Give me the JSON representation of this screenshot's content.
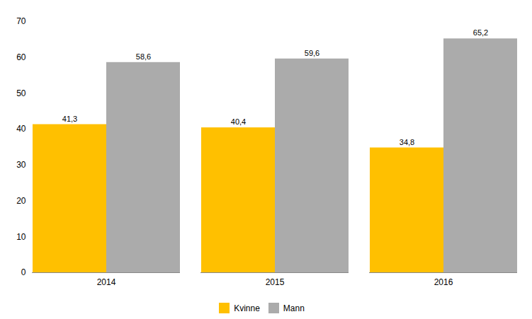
{
  "chart_data": {
    "type": "bar",
    "categories": [
      "2014",
      "2015",
      "2016"
    ],
    "series": [
      {
        "name": "Kvinne",
        "color": "#FFC000",
        "values": [
          41.3,
          40.4,
          34.8
        ],
        "value_labels": [
          "41,3",
          "40,4",
          "34,8"
        ]
      },
      {
        "name": "Mann",
        "color": "#ABABAB",
        "values": [
          58.6,
          59.6,
          65.2
        ],
        "value_labels": [
          "58,6",
          "59,6",
          "65,2"
        ]
      }
    ],
    "ylim": [
      0,
      70
    ],
    "yticks": [
      0,
      10,
      20,
      30,
      40,
      50,
      60,
      70
    ],
    "grid": false,
    "legend": "bottom",
    "data_labels": true
  }
}
